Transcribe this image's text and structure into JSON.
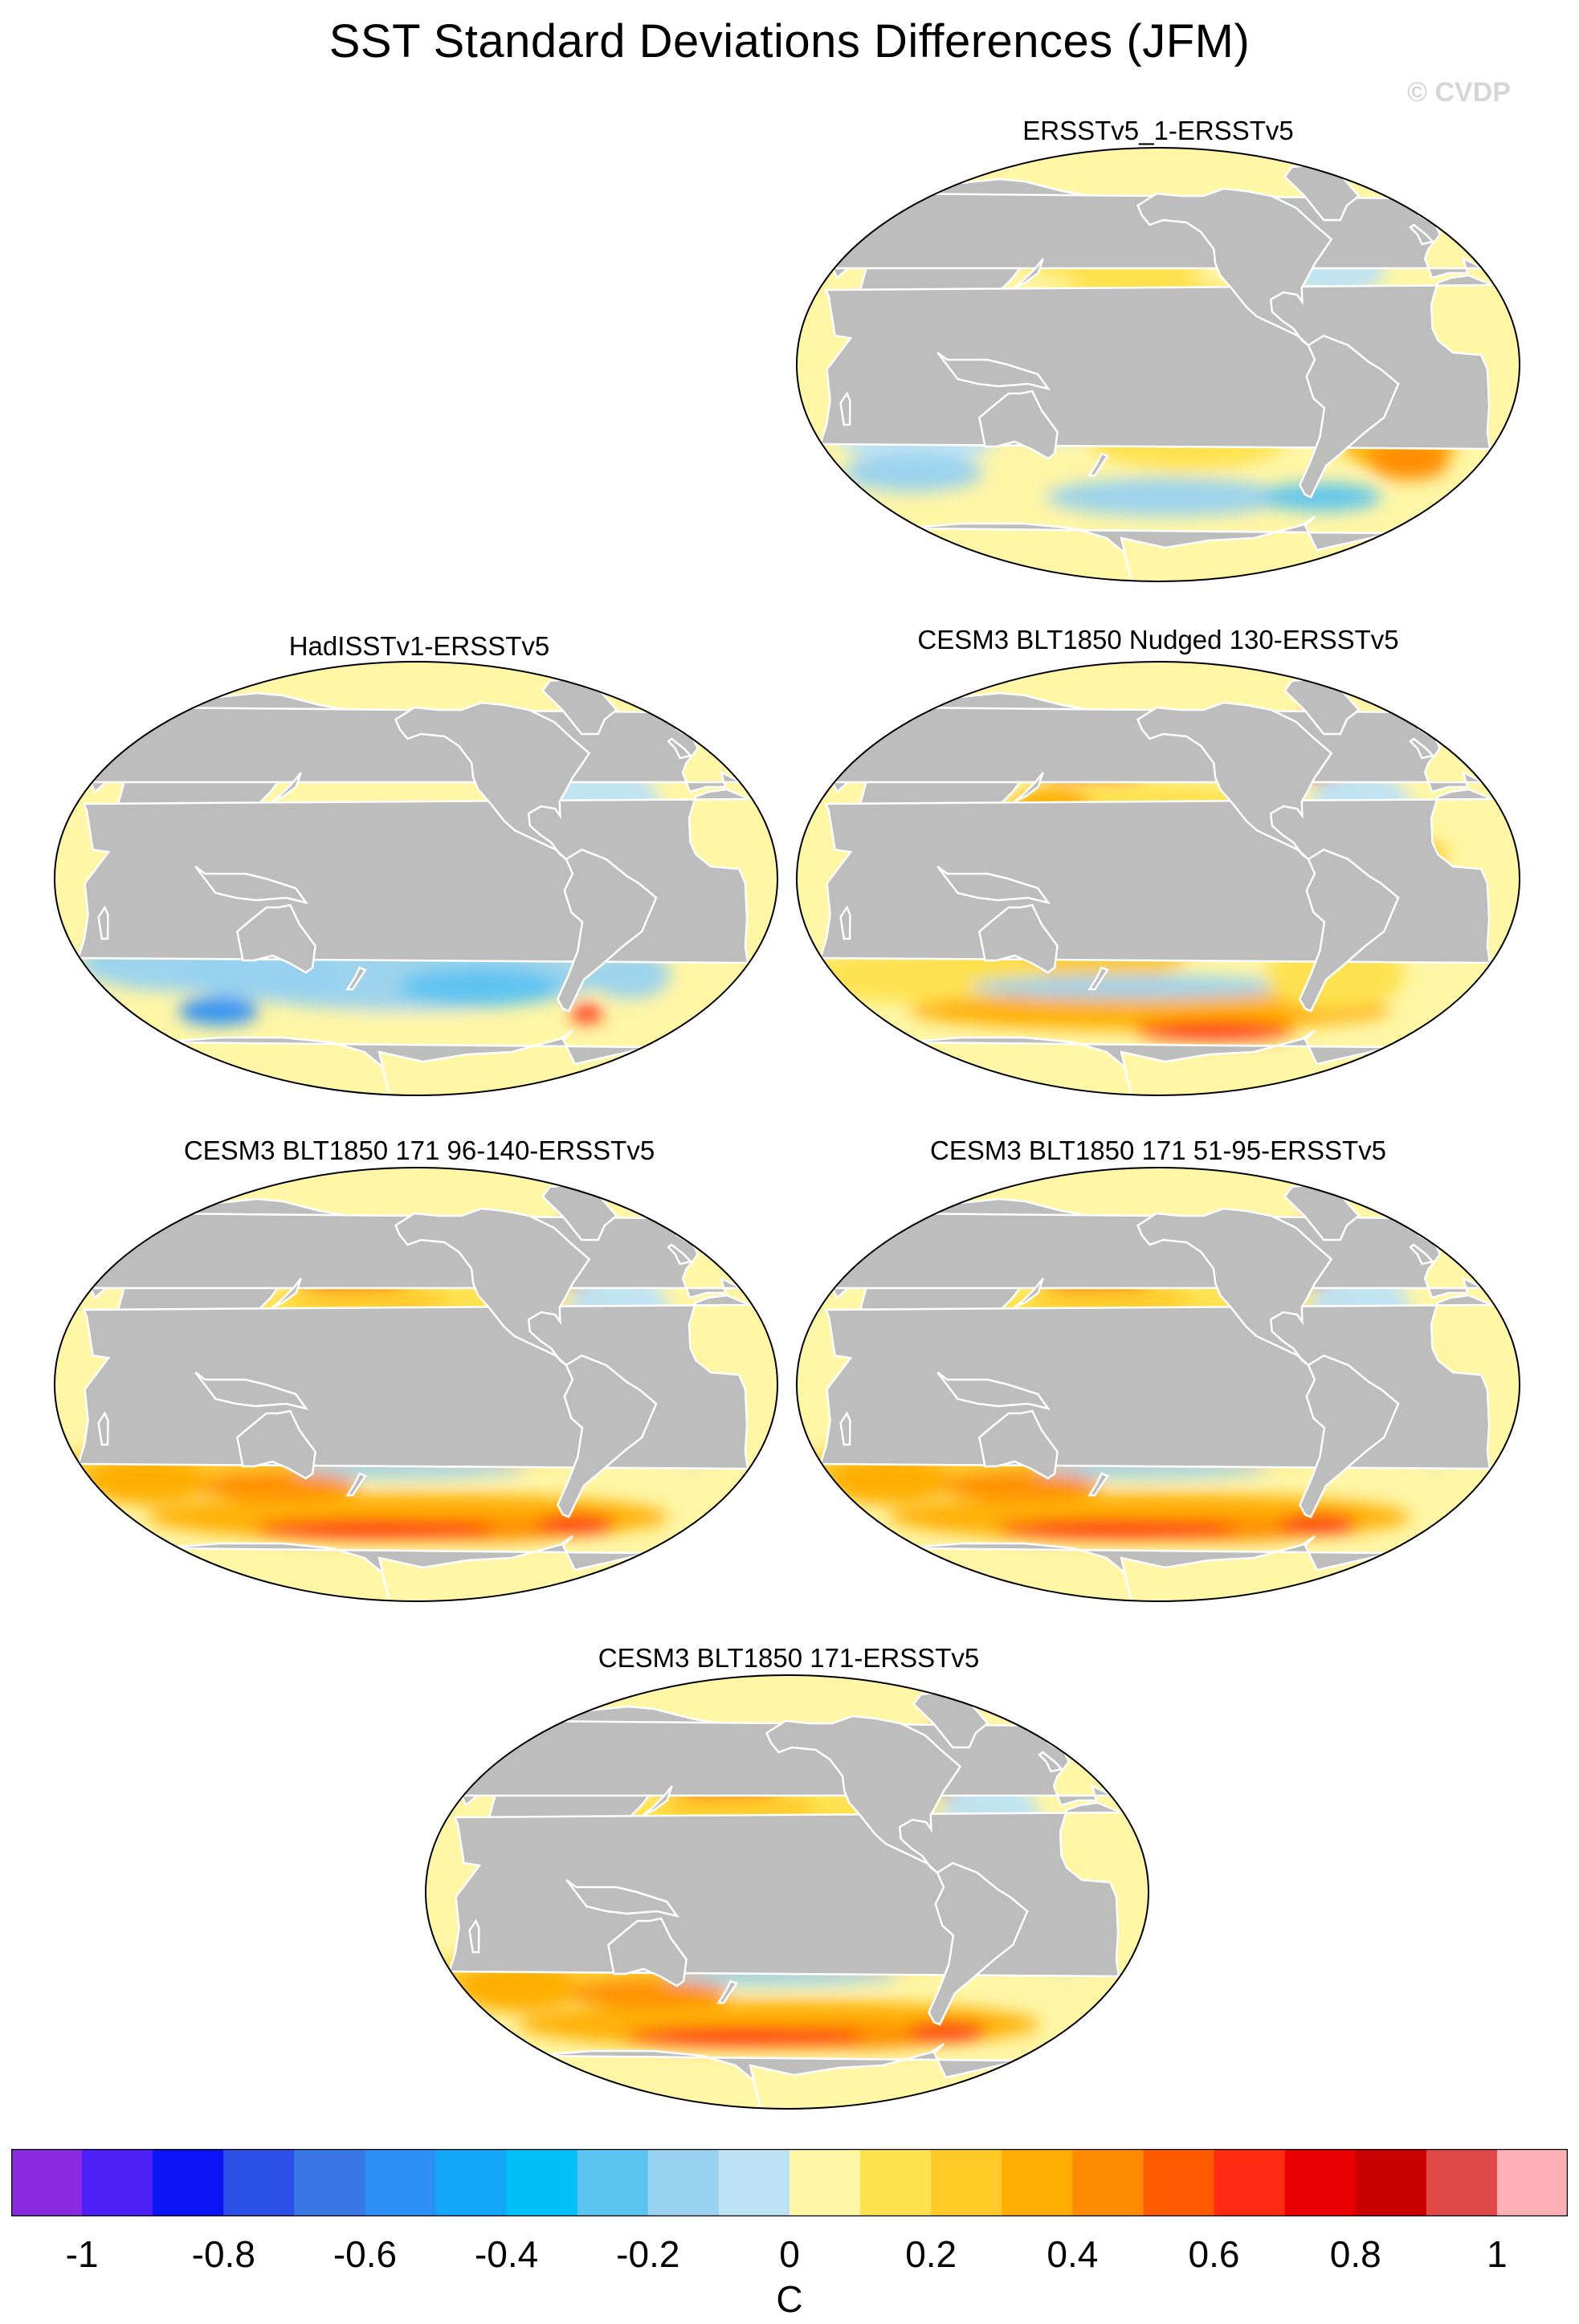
{
  "title": "SST Standard Deviations Differences (JFM)",
  "watermark": "© CVDP",
  "panels": [
    {
      "label": "ERSSTv5_1-ERSSTv5",
      "pattern": "mild"
    },
    {
      "label": "HadISSTv1-ERSSTv5",
      "pattern": "cool"
    },
    {
      "label": "CESM3 BLT1850 Nudged 130-ERSSTv5",
      "pattern": "warm"
    },
    {
      "label": "CESM3 BLT1850 171 96-140-ERSSTv5",
      "pattern": "strong"
    },
    {
      "label": "CESM3 BLT1850 171 51-95-ERSSTv5",
      "pattern": "strong"
    },
    {
      "label": "CESM3 BLT1850 171-ERSSTv5",
      "pattern": "strong"
    }
  ],
  "colorbar": {
    "unit": "C",
    "ticks": [
      "-1",
      "-0.8",
      "-0.6",
      "-0.4",
      "-0.2",
      "0",
      "0.2",
      "0.4",
      "0.6",
      "0.8",
      "1"
    ],
    "colors": [
      "#8a2be2",
      "#4b1ff5",
      "#0a14f5",
      "#2a50e6",
      "#3a78e6",
      "#2b8ff5",
      "#14a6f7",
      "#00c0f7",
      "#5cc4f0",
      "#98d2f0",
      "#bde3f5",
      "#fff6a6",
      "#ffe14d",
      "#ffca28",
      "#ffad00",
      "#ff8c00",
      "#ff5a00",
      "#ff2a12",
      "#e80000",
      "#c80000",
      "#e04848",
      "#ffb0b4"
    ]
  }
}
